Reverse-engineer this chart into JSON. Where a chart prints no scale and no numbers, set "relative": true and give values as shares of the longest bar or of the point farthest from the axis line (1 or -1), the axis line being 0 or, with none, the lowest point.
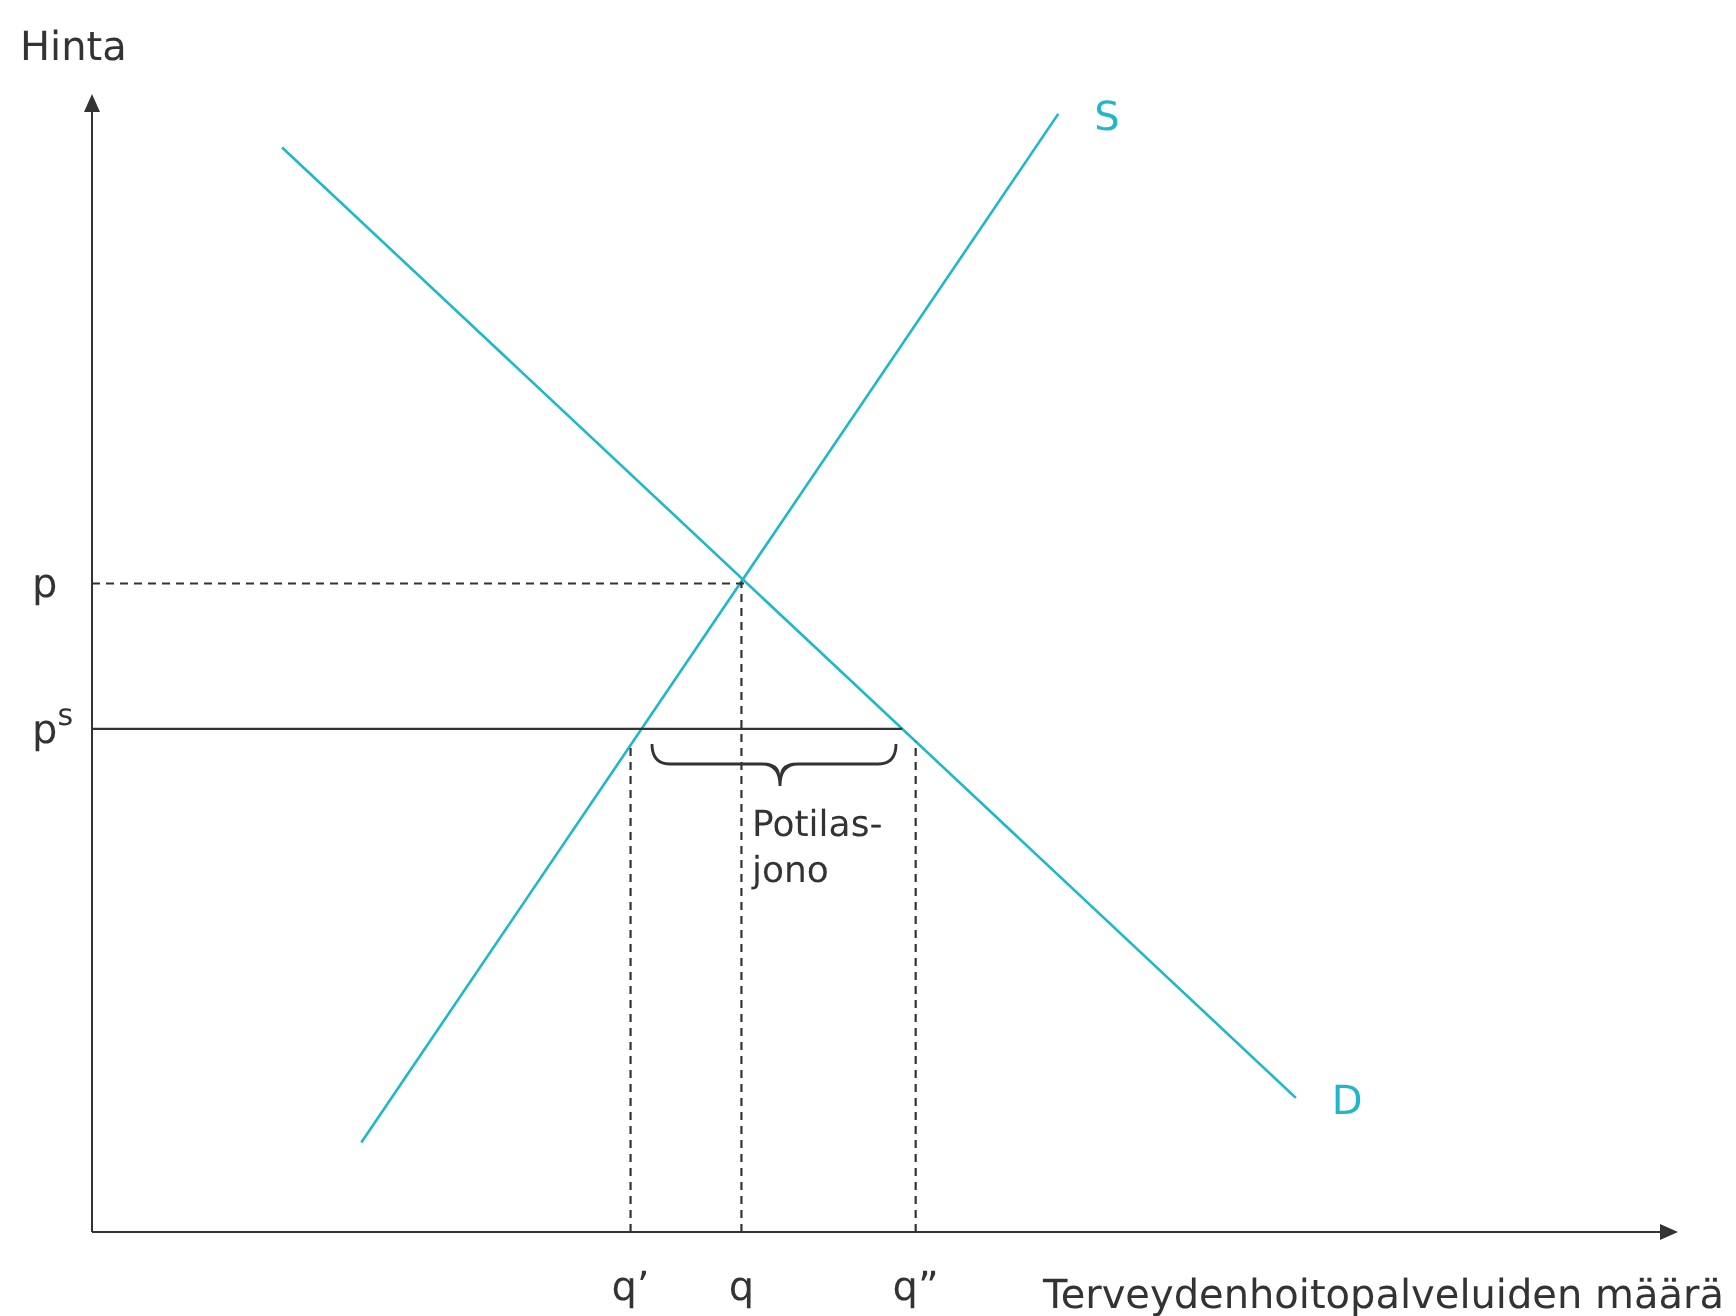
{
  "chart_data": {
    "type": "line",
    "xlabel": "Terveydenhoitopalveluiden määrä",
    "ylabel": "Hinta",
    "relative": true,
    "categories": [
      null,
      null,
      null,
      null,
      null,
      null,
      null,
      null,
      null,
      null,
      null,
      null,
      null,
      null,
      null,
      null,
      null,
      null,
      null,
      null,
      null,
      null,
      null,
      null,
      null,
      null,
      null,
      null,
      null,
      null,
      null,
      null,
      null,
      null,
      "q’",
      null,
      null,
      null,
      null,
      null,
      null,
      "q",
      null,
      null,
      null,
      null,
      null,
      null,
      null,
      null,
      null,
      null,
      "q”",
      null,
      null,
      null,
      null,
      null,
      null,
      null,
      null,
      null,
      null,
      null,
      null,
      null,
      null,
      null,
      null,
      null,
      null,
      null,
      null,
      null,
      null,
      null,
      null,
      null,
      null,
      null,
      null,
      null,
      null,
      null,
      null,
      null,
      null,
      null,
      null,
      null,
      null,
      null,
      null,
      null,
      null,
      null,
      null,
      null,
      null,
      null,
      null
    ],
    "grid": false,
    "legend": false,
    "marker": "none",
    "series": [
      {
        "name": "S",
        "color": "#1fb8c9",
        "values": [
          null,
          null,
          null,
          null,
          null,
          null,
          null,
          null,
          null,
          null,
          null,
          null,
          null,
          null,
          null,
          null,
          null,
          0.08,
          null,
          null,
          null,
          null,
          null,
          null,
          null,
          null,
          null,
          null,
          null,
          null,
          null,
          null,
          null,
          null,
          null,
          null,
          null,
          null,
          null,
          null,
          null,
          null,
          null,
          null,
          null,
          null,
          null,
          null,
          null,
          null,
          null,
          null,
          null,
          null,
          null,
          null,
          null,
          null,
          null,
          null,
          null,
          1,
          null,
          null,
          null,
          null,
          null,
          null,
          null,
          null,
          null,
          null,
          null,
          null,
          null,
          null,
          null,
          null,
          null,
          null,
          null,
          null,
          null,
          null,
          null,
          null,
          null,
          null,
          null,
          null,
          null,
          null,
          null,
          null,
          null,
          null,
          null,
          null,
          null,
          null,
          null
        ]
      },
      {
        "name": "D",
        "color": "#1fb8c9",
        "values": [
          null,
          null,
          null,
          null,
          null,
          null,
          null,
          null,
          null,
          null,
          null,
          null,
          0.97,
          null,
          null,
          null,
          null,
          null,
          null,
          null,
          null,
          null,
          null,
          null,
          null,
          null,
          null,
          null,
          null,
          null,
          null,
          null,
          null,
          null,
          null,
          null,
          null,
          null,
          null,
          null,
          null,
          null,
          null,
          null,
          null,
          null,
          null,
          null,
          null,
          null,
          null,
          null,
          null,
          null,
          null,
          null,
          null,
          null,
          null,
          null,
          null,
          null,
          null,
          null,
          null,
          null,
          null,
          null,
          null,
          null,
          null,
          null,
          null,
          null,
          null,
          null,
          0.12,
          null,
          null,
          null,
          null,
          null,
          null,
          null,
          null,
          null,
          null,
          null,
          null,
          null,
          null,
          null,
          null,
          null,
          null,
          null,
          null,
          null,
          null,
          null,
          null
        ]
      }
    ],
    "ref_lines": [
      {
        "axis": "y",
        "value": 0.58,
        "label": "p",
        "color": "#333333",
        "line_style": "dashed"
      },
      {
        "axis": "y",
        "value": 0.45,
        "label": "p$^{s}$",
        "color": "#333333",
        "line_style": "solid"
      },
      {
        "axis": "x",
        "value": "q’",
        "color": "#333333",
        "line_style": "dashed"
      },
      {
        "axis": "x",
        "value": "q",
        "color": "#333333",
        "line_style": "dashed"
      },
      {
        "axis": "x",
        "value": "q”",
        "color": "#333333",
        "line_style": "dashed"
      }
    ],
    "annotations": [
      "Potilas-\njono"
    ]
  }
}
